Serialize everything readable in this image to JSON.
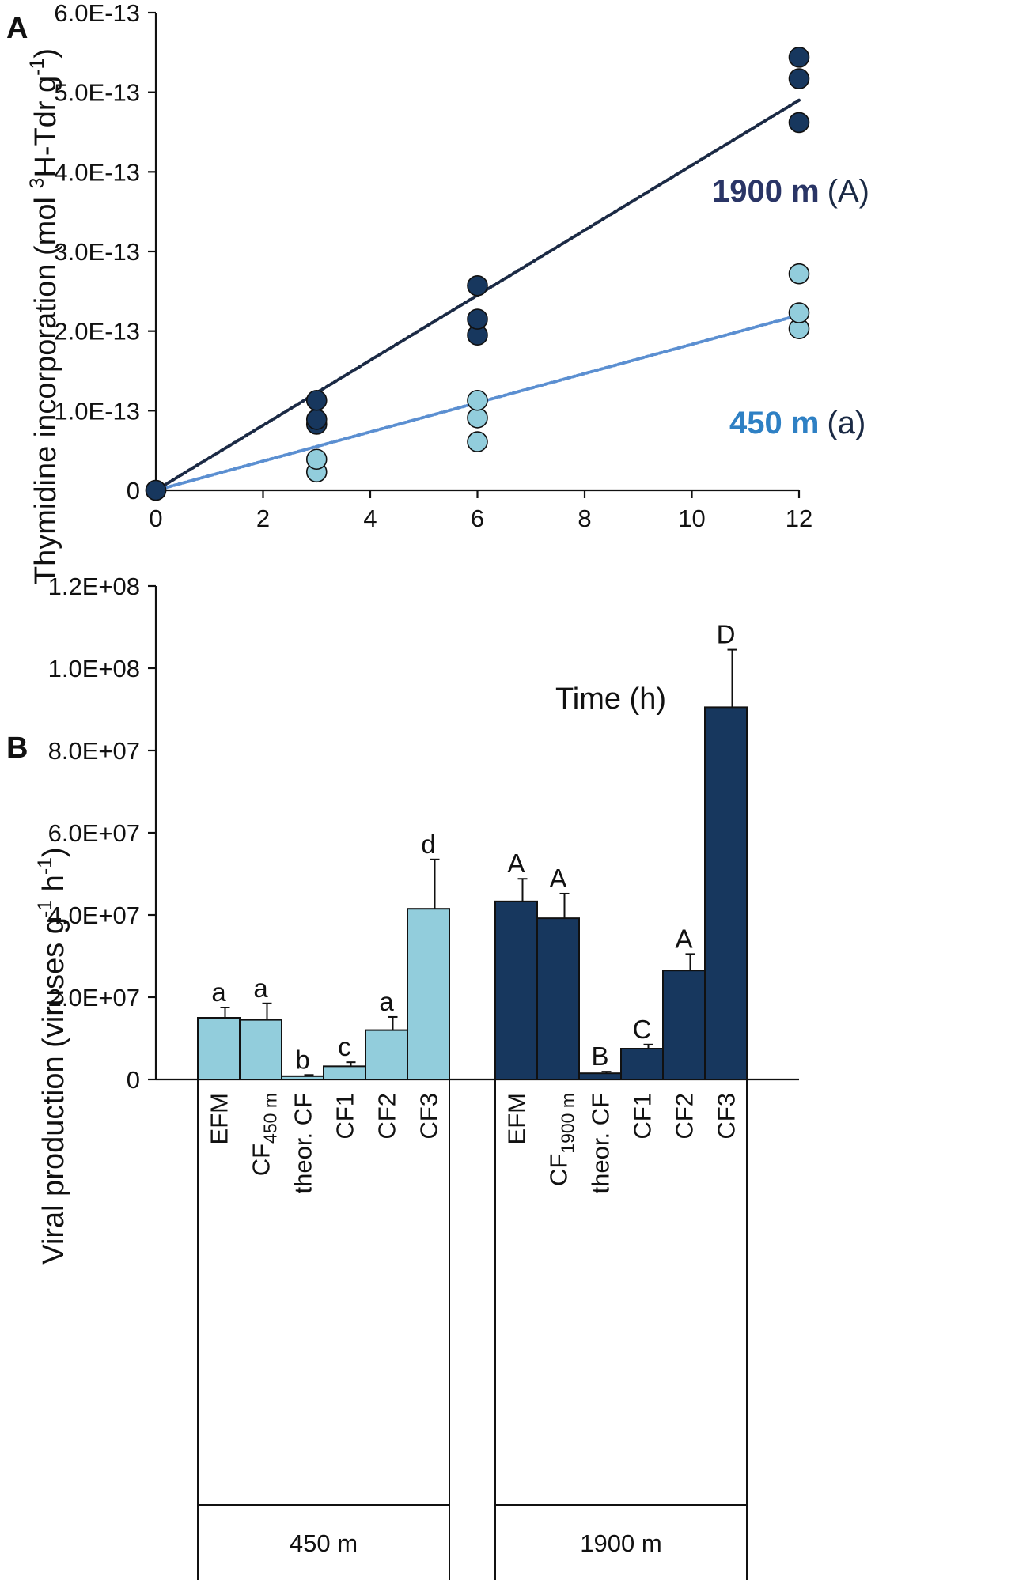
{
  "colors": {
    "deep": "#17375e",
    "deep_line": "#1b2a45",
    "shallow": "#92cddc",
    "shallow_line": "#5b8fd1",
    "label_deep": "#2a3566",
    "label_shallow": "#2e80c4",
    "axis": "#111111"
  },
  "chart_data": [
    {
      "panel": "A",
      "type": "scatter",
      "xlabel": "Time (h)",
      "ylabel": {
        "main": "Thymidine incorporation (mol ",
        "sup1": "3",
        "mid": "H-Tdr g",
        "sup2": "-1",
        "end": ")"
      },
      "xlim": [
        0,
        12
      ],
      "ylim": [
        0,
        6e-13
      ],
      "xticks": [
        0,
        2,
        4,
        6,
        8,
        10,
        12
      ],
      "yticks": [
        0,
        1e-13,
        2e-13,
        3e-13,
        4e-13,
        5e-13,
        6e-13
      ],
      "ytick_labels": [
        "0",
        "1.0E-13",
        "2.0E-13",
        "3.0E-13",
        "4.0E-13",
        "5.0E-13",
        "6.0E-13"
      ],
      "series": [
        {
          "name": "450 m",
          "significance": "(a)",
          "x": [
            0,
            3,
            3,
            6,
            6,
            6,
            12,
            12,
            12
          ],
          "y": [
            0,
            2.3e-14,
            3.9e-14,
            6.1e-14,
            9.1e-14,
            1.13e-13,
            2.03e-13,
            2.23e-13,
            2.72e-13
          ],
          "trend": {
            "x": [
              0,
              12
            ],
            "y": [
              0,
              2.2e-13
            ]
          }
        },
        {
          "name": "1900 m",
          "significance": "(A)",
          "x": [
            0,
            3,
            3,
            3,
            6,
            6,
            6,
            12,
            12,
            12
          ],
          "y": [
            0,
            8.3e-14,
            8.9e-14,
            1.13e-13,
            1.95e-13,
            2.15e-13,
            2.57e-13,
            4.62e-13,
            5.17e-13,
            5.44e-13
          ],
          "trend": {
            "x": [
              0,
              12
            ],
            "y": [
              0,
              4.9e-13
            ]
          }
        }
      ]
    },
    {
      "panel": "B",
      "type": "bar",
      "ylabel": {
        "main": "Viral production (viruses g",
        "sup1": "-1",
        "mid": " h",
        "sup2": "-1",
        "end": ")"
      },
      "ylim": [
        0,
        120000000.0
      ],
      "yticks": [
        0,
        20000000.0,
        40000000.0,
        60000000.0,
        80000000.0,
        100000000.0,
        120000000.0
      ],
      "ytick_labels": [
        "0",
        "2.0E+07",
        "4.0E+07",
        "6.0E+07",
        "8.0E+07",
        "1.0E+08",
        "1.2E+08"
      ],
      "groups": [
        {
          "name": "450 m",
          "color_key": "shallow",
          "bars": [
            {
              "label": "EFM",
              "sub": "",
              "value": 15000000.0,
              "error": 2500000.0,
              "letter": "a"
            },
            {
              "label": "CF",
              "sub": "450 m",
              "value": 14500000.0,
              "error": 4000000.0,
              "letter": "a"
            },
            {
              "label": "theor. CF",
              "sub": "",
              "value": 800000.0,
              "error": 300000.0,
              "letter": "b"
            },
            {
              "label": "CF1",
              "sub": "",
              "value": 3200000.0,
              "error": 1000000.0,
              "letter": "c"
            },
            {
              "label": "CF2",
              "sub": "",
              "value": 12000000.0,
              "error": 3200000.0,
              "letter": "a"
            },
            {
              "label": "CF3",
              "sub": "",
              "value": 41500000.0,
              "error": 12000000.0,
              "letter": "d"
            }
          ]
        },
        {
          "name": "1900 m",
          "color_key": "deep",
          "bars": [
            {
              "label": "EFM",
              "sub": "",
              "value": 43300000.0,
              "error": 5500000.0,
              "letter": "A"
            },
            {
              "label": "CF",
              "sub": "1900 m",
              "value": 39200000.0,
              "error": 6000000.0,
              "letter": "A"
            },
            {
              "label": "theor. CF",
              "sub": "",
              "value": 1500000.0,
              "error": 400000.0,
              "letter": "B"
            },
            {
              "label": "CF1",
              "sub": "",
              "value": 7500000.0,
              "error": 1000000.0,
              "letter": "C"
            },
            {
              "label": "CF2",
              "sub": "",
              "value": 26500000.0,
              "error": 4000000.0,
              "letter": "A"
            },
            {
              "label": "CF3",
              "sub": "",
              "value": 90500000.0,
              "error": 14000000.0,
              "letter": "D"
            }
          ]
        }
      ]
    }
  ]
}
